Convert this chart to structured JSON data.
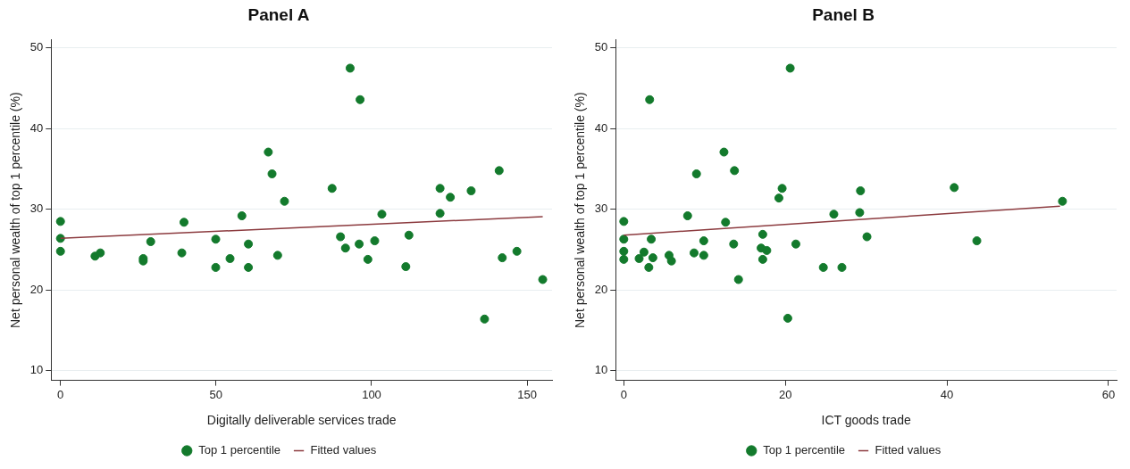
{
  "chart_data": [
    {
      "type": "scatter",
      "title": "Panel A",
      "xlabel": "Digitally deliverable services trade",
      "ylabel": "Net personal wealth of top 1 percentile (%)",
      "xlim": [
        -3,
        158
      ],
      "xticks": [
        0,
        50,
        100,
        150
      ],
      "ylim": [
        8.8,
        51
      ],
      "yticks": [
        10,
        20,
        30,
        40,
        50
      ],
      "grid": "y",
      "legend": "bottom",
      "series": [
        {
          "name": "Top 1 percentile",
          "type": "scatter",
          "marker": "circle",
          "color": "#137a2c",
          "x": [
            0,
            0,
            0,
            11.1,
            12.8,
            26.6,
            26.6,
            29,
            39,
            39.7,
            49.9,
            49.9,
            54.5,
            58.3,
            60.4,
            60.4,
            66.8,
            68,
            69.8,
            72,
            87.3,
            90,
            91.6,
            93.1,
            96.3,
            96,
            98.8,
            101,
            103.3,
            112,
            111,
            122,
            122,
            125.3,
            132,
            136.3,
            141,
            142,
            146.7,
            155
          ],
          "values": [
            28.5,
            26.4,
            24.8,
            24.2,
            24.6,
            23.9,
            23.6,
            26,
            24.6,
            28.4,
            26.3,
            22.8,
            23.9,
            29.2,
            25.7,
            22.8,
            37.1,
            34.4,
            24.3,
            31,
            32.6,
            26.6,
            25.2,
            47.5,
            43.6,
            25.7,
            23.8,
            26.1,
            29.4,
            26.8,
            22.9,
            32.6,
            29.5,
            31.5,
            32.3,
            16.4,
            34.8,
            24,
            24.8,
            21.3
          ]
        },
        {
          "name": "Fitted values",
          "type": "line",
          "color": "#8c3b3f",
          "x": [
            0,
            155
          ],
          "values": [
            26.4,
            29.1
          ]
        }
      ]
    },
    {
      "type": "scatter",
      "title": "Panel B",
      "xlabel": "ICT goods trade",
      "ylabel": "Net personal wealth of top 1 percentile (%)",
      "xlim": [
        -1,
        61
      ],
      "xticks": [
        0,
        20,
        40,
        60
      ],
      "ylim": [
        8.8,
        51
      ],
      "yticks": [
        10,
        20,
        30,
        40,
        50
      ],
      "grid": "y",
      "legend": "bottom",
      "series": [
        {
          "name": "Top 1 percentile",
          "type": "scatter",
          "marker": "circle",
          "color": "#137a2c",
          "x": [
            0,
            0,
            0,
            0,
            1.9,
            2.5,
            3.1,
            3.2,
            3.4,
            3.6,
            5.6,
            5.9,
            7.9,
            8.7,
            9,
            9.9,
            9.9,
            12.4,
            12.6,
            13.6,
            13.7,
            14.2,
            17.2,
            17,
            17.7,
            17.2,
            19.2,
            19.6,
            20.3,
            20.6,
            21.3,
            24.7,
            26,
            27,
            29.3,
            29.2,
            30.1,
            40.9,
            43.7,
            54.3
          ],
          "values": [
            28.5,
            26.3,
            24.8,
            23.8,
            23.9,
            24.7,
            22.8,
            43.6,
            26.3,
            24,
            24.3,
            23.6,
            29.2,
            24.6,
            34.4,
            26.1,
            24.3,
            37.1,
            28.4,
            25.7,
            34.8,
            21.3,
            26.9,
            25.2,
            24.9,
            23.8,
            31.4,
            32.6,
            16.5,
            47.5,
            25.7,
            22.8,
            29.4,
            22.8,
            32.3,
            29.6,
            26.6,
            32.7,
            26.1,
            31
          ]
        },
        {
          "name": "Fitted values",
          "type": "line",
          "color": "#8c3b3f",
          "x": [
            0,
            54
          ],
          "values": [
            26.8,
            30.4
          ]
        }
      ]
    }
  ]
}
